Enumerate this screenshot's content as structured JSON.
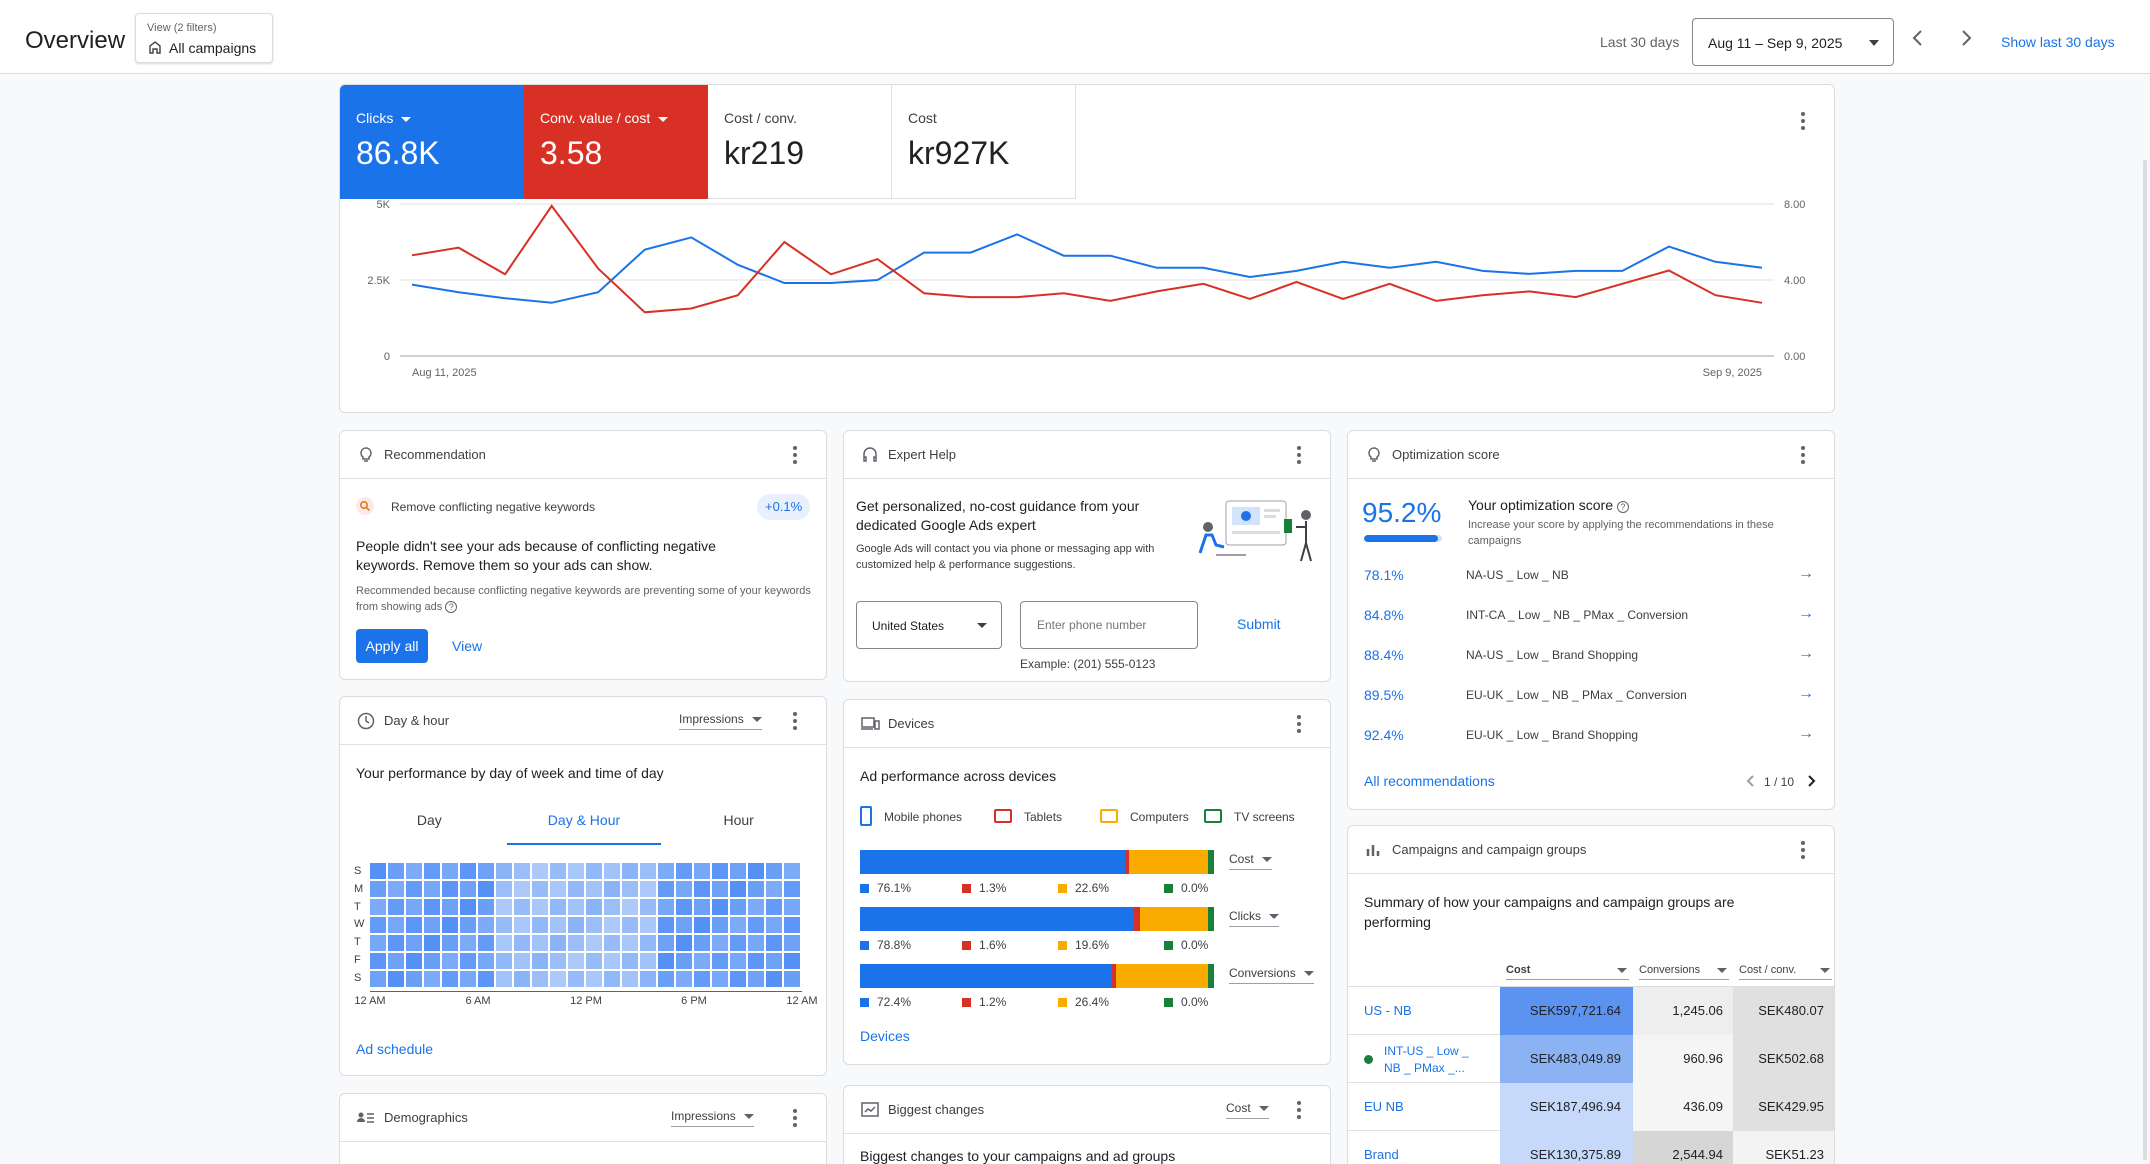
{
  "header": {
    "title": "Overview",
    "view_filter_label": "View (2 filters)",
    "view_value": "All campaigns",
    "range_label": "Last 30 days",
    "date_range": "Aug 11 – Sep 9, 2025",
    "show_last_label": "Show last 30 days"
  },
  "metrics": [
    {
      "label": "Clicks",
      "value": "86.8K",
      "color": "#1a73e8"
    },
    {
      "label": "Conv. value / cost",
      "value": "3.58",
      "color": "#d93025"
    },
    {
      "label": "Cost / conv.",
      "value": "kr219"
    },
    {
      "label": "Cost",
      "value": "kr927K"
    }
  ],
  "chart_data": {
    "type": "line",
    "x_start_label": "Aug 11, 2025",
    "x_end_label": "Sep 9, 2025",
    "y_left_ticks": [
      "0",
      "2.5K",
      "5K"
    ],
    "y_right_ticks": [
      "0.00",
      "4.00",
      "8.00"
    ],
    "ylim_left": [
      0,
      5000
    ],
    "ylim_right": [
      0,
      8
    ],
    "grid": true,
    "series": [
      {
        "name": "Clicks",
        "axis": "left",
        "color": "#1a73e8",
        "values": [
          2350,
          2100,
          1900,
          1750,
          2100,
          3500,
          3900,
          3000,
          2400,
          2400,
          2500,
          3400,
          3400,
          4000,
          3300,
          3300,
          2900,
          2900,
          2600,
          2800,
          3100,
          2900,
          3100,
          2800,
          2700,
          2800,
          2800,
          3600,
          3100,
          2900
        ]
      },
      {
        "name": "Conv. value / cost",
        "axis": "right",
        "color": "#d93025",
        "values": [
          5.3,
          5.7,
          4.3,
          7.9,
          4.6,
          2.3,
          2.5,
          3.2,
          6.0,
          4.3,
          5.1,
          3.3,
          3.1,
          3.1,
          3.3,
          2.9,
          3.4,
          3.8,
          3.0,
          3.9,
          3.0,
          3.8,
          2.9,
          3.2,
          3.4,
          3.1,
          3.8,
          4.5,
          3.2,
          2.8
        ]
      }
    ]
  },
  "recommendation": {
    "title": "Recommendation",
    "item": "Remove conflicting negative keywords",
    "badge": "+0.1%",
    "headline": "People didn't see your ads because of conflicting negative keywords. Remove them so your ads can show.",
    "detail": "Recommended because conflicting negative keywords are preventing some of your keywords from showing ads",
    "apply_label": "Apply all",
    "view_label": "View"
  },
  "expert": {
    "title": "Expert Help",
    "headline": "Get personalized, no-cost guidance from your dedicated Google Ads expert",
    "detail": "Google Ads will contact you via phone or messaging app with customized help & performance suggestions.",
    "country": "United States",
    "phone_placeholder": "Enter phone number",
    "example": "Example: (201) 555-0123",
    "submit_label": "Submit"
  },
  "optimization": {
    "title": "Optimization score",
    "score": "95.2%",
    "score_fraction": 0.952,
    "heading": "Your optimization score",
    "detail": "Increase your score by applying the recommendations in these campaigns",
    "rows": [
      {
        "pct": "78.1%",
        "name": "NA-US _ Low _ NB"
      },
      {
        "pct": "84.8%",
        "name": "INT-CA _ Low _ NB _ PMax _ Conversion"
      },
      {
        "pct": "88.4%",
        "name": "NA-US _ Low _ Brand Shopping"
      },
      {
        "pct": "89.5%",
        "name": "EU-UK _ Low _ NB _ PMax _ Conversion"
      },
      {
        "pct": "92.4%",
        "name": "EU-UK _ Low _ Brand Shopping"
      }
    ],
    "all_label": "All recommendations",
    "pager": "1 / 10"
  },
  "dayhour": {
    "title": "Day & hour",
    "metric": "Impressions",
    "heading": "Your performance by day of week and time of day",
    "tabs": [
      "Day",
      "Day & Hour",
      "Hour"
    ],
    "active_tab": 1,
    "days": [
      "S",
      "M",
      "T",
      "W",
      "T",
      "F",
      "S"
    ],
    "hours": [
      "12 AM",
      "6 AM",
      "12 PM",
      "6 PM",
      "12 AM"
    ],
    "link": "Ad schedule"
  },
  "devices": {
    "title": "Devices",
    "heading": "Ad performance across devices",
    "legend": [
      {
        "name": "Mobile phones",
        "color": "#1a73e8"
      },
      {
        "name": "Tablets",
        "color": "#d93025"
      },
      {
        "name": "Computers",
        "color": "#f9ab00"
      },
      {
        "name": "TV screens",
        "color": "#188038"
      }
    ],
    "bars": [
      {
        "metric": "Cost",
        "shares": [
          76.1,
          1.3,
          22.6,
          0.0
        ],
        "labels": [
          "76.1%",
          "1.3%",
          "22.6%",
          "0.0%"
        ]
      },
      {
        "metric": "Clicks",
        "shares": [
          78.8,
          1.6,
          19.6,
          0.0
        ],
        "labels": [
          "78.8%",
          "1.6%",
          "19.6%",
          "0.0%"
        ]
      },
      {
        "metric": "Conversions",
        "shares": [
          72.4,
          1.2,
          26.4,
          0.0
        ],
        "labels": [
          "72.4%",
          "1.2%",
          "26.4%",
          "0.0%"
        ]
      }
    ],
    "link": "Devices"
  },
  "campaigns": {
    "title": "Campaigns and campaign groups",
    "heading": "Summary of how your campaigns and campaign groups are performing",
    "columns": [
      "Cost",
      "Conversions",
      "Cost / conv."
    ],
    "rows": [
      {
        "name": "US - NB",
        "cost": "SEK597,721.64",
        "conv": "1,245.06",
        "cpc": "SEK480.07"
      },
      {
        "name": "INT-US _ Low _ NB _ PMax _...",
        "cost": "SEK483,049.89",
        "conv": "960.96",
        "cpc": "SEK502.68"
      },
      {
        "name": "EU NB",
        "cost": "SEK187,496.94",
        "conv": "436.09",
        "cpc": "SEK429.95"
      },
      {
        "name": "Brand",
        "cost": "SEK130,375.89",
        "conv": "2,544.94",
        "cpc": "SEK51.23"
      }
    ]
  },
  "demographics": {
    "title": "Demographics",
    "metric": "Impressions"
  },
  "biggest": {
    "title": "Biggest changes",
    "metric": "Cost",
    "heading": "Biggest changes to your campaigns and ad groups"
  }
}
